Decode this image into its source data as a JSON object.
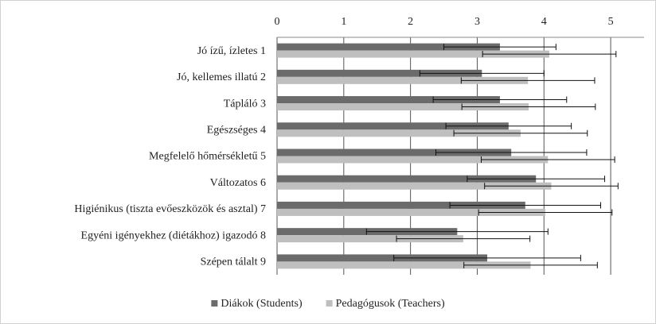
{
  "chart_data": {
    "type": "bar",
    "orientation": "horizontal",
    "categories": [
      "Jó ízű, ízletes 1",
      "Jó, kellemes illatú 2",
      "Tápláló 3",
      "Egészséges 4",
      "Megfelelő hőmérsékletű 5",
      "Változatos 6",
      "Higiénikus (tiszta evőeszközök és asztal) 7",
      "Egyéni igényekhez (diétákhoz) igazodó 8",
      "Szépen tálalt 9"
    ],
    "series": [
      {
        "name": "Diákok (Students)",
        "color": "#6b6b6b",
        "values": [
          3.34,
          3.07,
          3.34,
          3.47,
          3.51,
          3.88,
          3.72,
          2.7,
          3.15
        ],
        "errors": [
          0.84,
          0.93,
          1.0,
          0.94,
          1.13,
          1.03,
          1.13,
          1.36,
          1.4
        ]
      },
      {
        "name": "Pedagógusok (Teachers)",
        "color": "#bfbfbf",
        "values": [
          4.08,
          3.76,
          3.77,
          3.65,
          4.06,
          4.11,
          4.02,
          2.79,
          3.8
        ],
        "errors": [
          1.0,
          1.0,
          1.0,
          1.0,
          1.0,
          1.0,
          1.0,
          1.0,
          1.0
        ]
      }
    ],
    "xlim": [
      0,
      5.5
    ],
    "xticks": [
      0,
      1,
      2,
      3,
      4,
      5
    ],
    "grid": true,
    "legend": "bottom"
  }
}
